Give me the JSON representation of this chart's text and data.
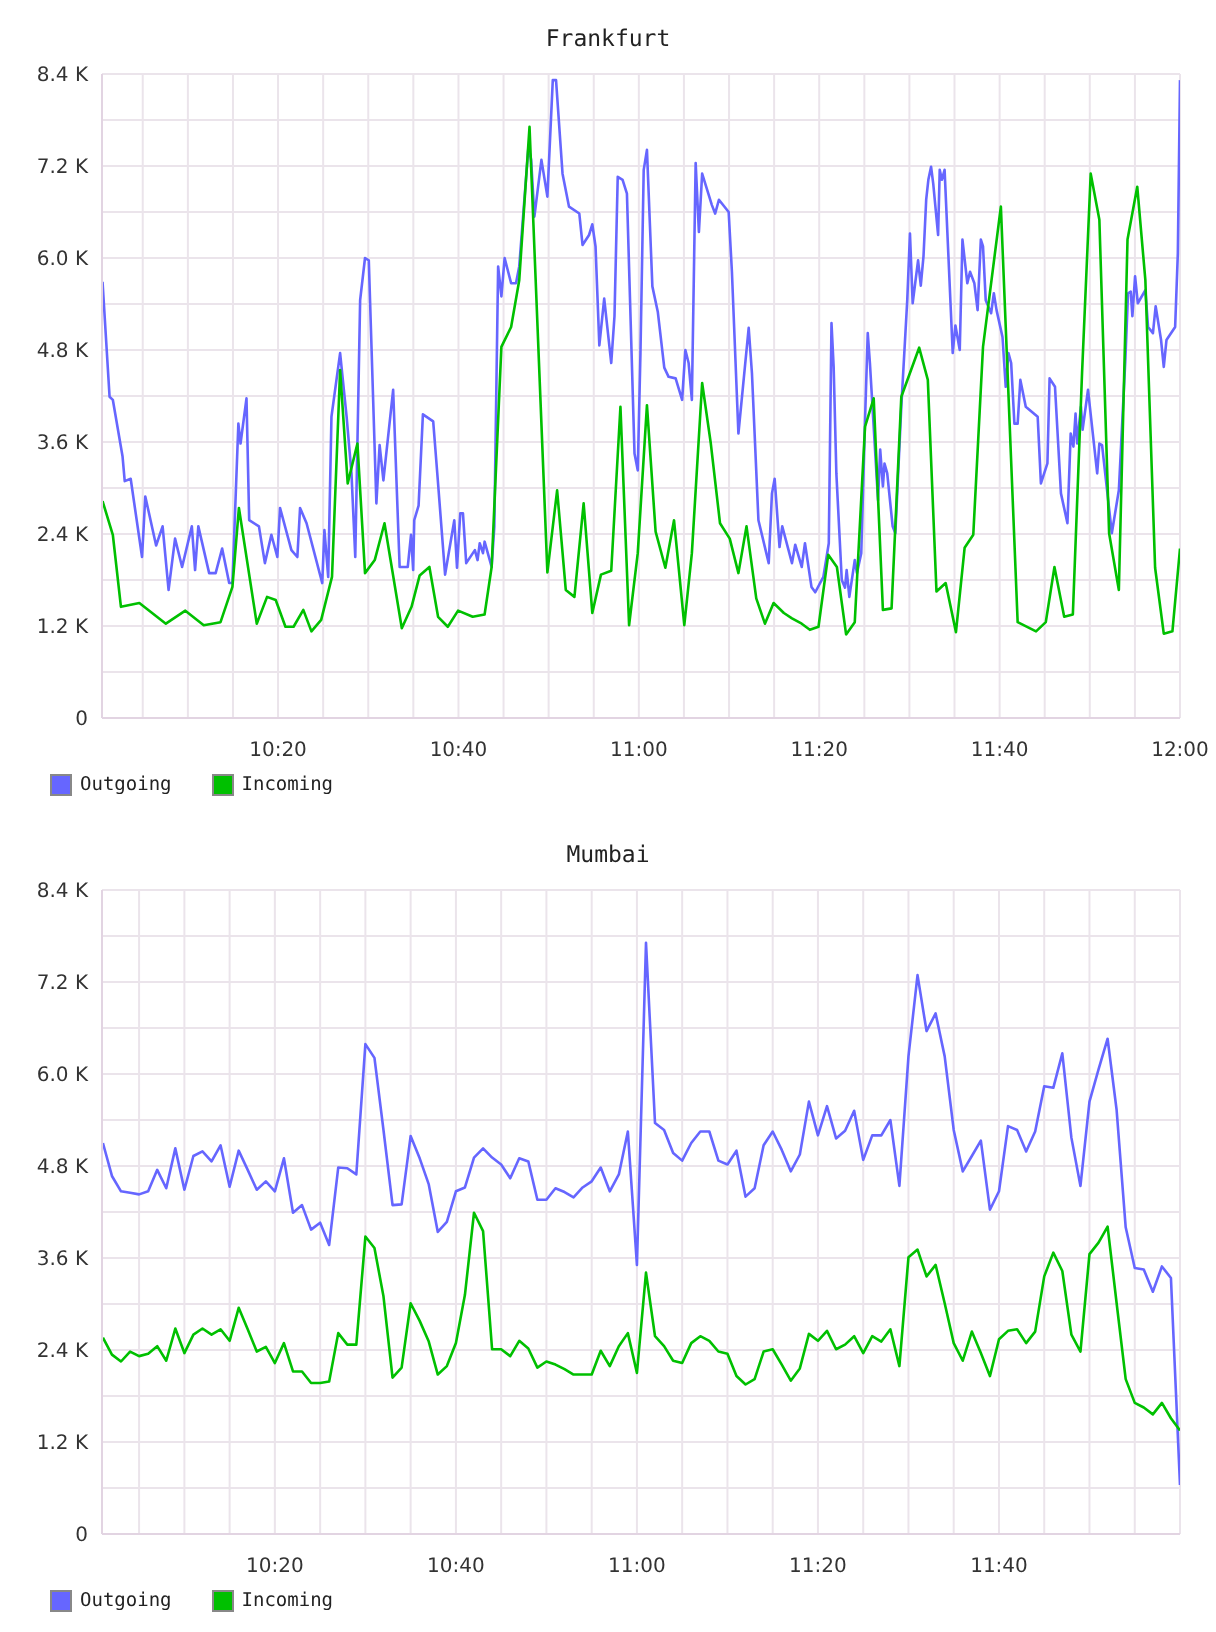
{
  "chart_data": [
    {
      "type": "line",
      "title": "Frankfurt",
      "series": [
        {
          "name": "Outgoing",
          "color": "#6666ff",
          "x": [
            10.009,
            10.022,
            10.028,
            10.046,
            10.05,
            10.061,
            10.082,
            10.088,
            10.108,
            10.12,
            10.131,
            10.143,
            10.156,
            10.174,
            10.18,
            10.186,
            10.206,
            10.218,
            10.23,
            10.243,
            10.249,
            10.26,
            10.264,
            10.275,
            10.28,
            10.298,
            10.309,
            10.321,
            10.332,
            10.337,
            10.358,
            10.369,
            10.374,
            10.386,
            10.415,
            10.419,
            10.426,
            10.432,
            10.448,
            10.46,
            10.469,
            10.476,
            10.485,
            10.494,
            10.501,
            10.515,
            10.521,
            10.528,
            10.546,
            10.558,
            10.573,
            10.579,
            10.583,
            10.585,
            10.593,
            10.601,
            10.62,
            10.628,
            10.642,
            10.647,
            10.659,
            10.664,
            10.67,
            10.675,
            10.681,
            10.697,
            10.702,
            10.706,
            10.712,
            10.715,
            10.728,
            10.733,
            10.74,
            10.746,
            10.752,
            10.764,
            10.773,
            10.779,
            10.796,
            10.801,
            10.807,
            10.82,
            10.831,
            10.841,
            10.847,
            10.859,
            10.871,
            10.89,
            10.896,
            10.908,
            10.914,
            10.92,
            10.927,
            10.936,
            10.949,
            10.955,
            10.961,
            10.97,
            10.978,
            10.992,
            10.998,
            11.003,
            11.009,
            11.015,
            11.025,
            11.035,
            11.047,
            11.055,
            11.068,
            11.08,
            11.086,
            11.092,
            11.098,
            11.105,
            11.111,
            11.117,
            11.135,
            11.141,
            11.148,
            11.166,
            11.172,
            11.184,
            11.203,
            11.209,
            11.221,
            11.24,
            11.246,
            11.251,
            11.26,
            11.265,
            11.283,
            11.289,
            11.301,
            11.307,
            11.319,
            11.326,
            11.341,
            11.351,
            11.356,
            11.36,
            11.365,
            11.375,
            11.381,
            11.384,
            11.389,
            11.399,
            11.403,
            11.411,
            11.418,
            11.423,
            11.427,
            11.442,
            11.446,
            11.451,
            11.454,
            11.459,
            11.469,
            11.474,
            11.485,
            11.496,
            11.501,
            11.506,
            11.516,
            11.521,
            11.526,
            11.531,
            11.535,
            11.54,
            11.544,
            11.553,
            11.556,
            11.56,
            11.565,
            11.58,
            11.585,
            11.593,
            11.598,
            11.607,
            11.612,
            11.62,
            11.626,
            11.632,
            11.636,
            11.641,
            11.651,
            11.656,
            11.661,
            11.672,
            11.678,
            11.683,
            11.688,
            11.694,
            11.7,
            11.705,
            11.715,
            11.737,
            11.743,
            11.755,
            11.759,
            11.769,
            11.78,
            11.792,
            11.798,
            11.803,
            11.807,
            11.81,
            11.817,
            11.82,
            11.83,
            11.847,
            11.851,
            11.856,
            11.874,
            11.887,
            11.899,
            11.904,
            11.909,
            11.912,
            11.917,
            11.922,
            11.936,
            11.941,
            11.95,
            11.955,
            11.965,
            11.97,
            11.975,
            11.991,
            11.996,
            12
          ],
          "values": [
            5690,
            4190,
            4150,
            3410,
            3090,
            3120,
            2100,
            2890,
            2250,
            2500,
            1670,
            2340,
            1970,
            2500,
            1930,
            2500,
            1890,
            1890,
            2210,
            1760,
            1760,
            3840,
            3580,
            4170,
            2580,
            2500,
            2020,
            2390,
            2100,
            2740,
            2190,
            2100,
            2740,
            2540,
            1760,
            2450,
            1840,
            3930,
            4760,
            3930,
            3190,
            2100,
            5450,
            6000,
            5970,
            2800,
            3560,
            3100,
            4280,
            1970,
            1970,
            2390,
            1930,
            2580,
            2770,
            3960,
            3870,
            3150,
            1870,
            2080,
            2580,
            1960,
            2670,
            2670,
            2020,
            2190,
            2060,
            2280,
            2150,
            2300,
            1970,
            2500,
            5890,
            5500,
            6000,
            5670,
            5670,
            5890,
            7450,
            7280,
            6540,
            7280,
            6800,
            8320,
            8320,
            7100,
            6670,
            6580,
            6170,
            6300,
            6440,
            6150,
            4860,
            5470,
            4630,
            5240,
            7060,
            7020,
            6840,
            3450,
            3230,
            4760,
            7150,
            7410,
            5630,
            5300,
            4570,
            4450,
            4430,
            4150,
            4800,
            4630,
            4150,
            7240,
            6340,
            7100,
            6690,
            6580,
            6760,
            6600,
            5820,
            3710,
            5090,
            4500,
            2580,
            2020,
            2930,
            3120,
            2230,
            2500,
            2020,
            2260,
            1970,
            2280,
            1710,
            1640,
            1840,
            2280,
            5150,
            4580,
            3190,
            1800,
            1700,
            1930,
            1580,
            2060,
            1890,
            2150,
            3890,
            5020,
            4630,
            2840,
            3500,
            3020,
            3320,
            3190,
            2500,
            2410,
            4060,
            5450,
            6320,
            5410,
            5970,
            5640,
            6020,
            6760,
            7020,
            7190,
            6970,
            6300,
            7150,
            7020,
            7150,
            4760,
            5120,
            4800,
            6240,
            5670,
            5820,
            5670,
            5320,
            6240,
            6150,
            5450,
            5280,
            5540,
            5320,
            4970,
            4320,
            4760,
            4630,
            3840,
            3840,
            4410,
            4060,
            3930,
            3060,
            3320,
            4430,
            4320,
            2930,
            2540,
            3710,
            3540,
            3970,
            3580,
            4060,
            3760,
            4280,
            3190,
            3580,
            3560,
            2410,
            2970,
            4670,
            5540,
            5560,
            5240,
            5760,
            5410,
            5580,
            5100,
            5020,
            5370,
            4930,
            4580,
            4930,
            5100,
            6060,
            8320
          ]
        },
        {
          "name": "Incoming",
          "color": "#00c000",
          "x": [
            10.009,
            10.028,
            10.043,
            10.077,
            10.126,
            10.162,
            10.196,
            10.227,
            10.249,
            10.261,
            10.294,
            10.313,
            10.329,
            10.347,
            10.362,
            10.38,
            10.395,
            10.413,
            10.433,
            10.448,
            10.462,
            10.48,
            10.494,
            10.512,
            10.53,
            10.562,
            10.58,
            10.595,
            10.613,
            10.629,
            10.647,
            10.666,
            10.693,
            10.715,
            10.728,
            10.746,
            10.764,
            10.779,
            10.798,
            10.831,
            10.849,
            10.865,
            10.881,
            10.898,
            10.914,
            10.93,
            10.949,
            10.966,
            10.982,
            10.998,
            11.015,
            11.031,
            11.049,
            11.065,
            11.084,
            11.098,
            11.117,
            11.133,
            11.15,
            11.168,
            11.184,
            11.199,
            11.217,
            11.233,
            11.249,
            11.268,
            11.283,
            11.301,
            11.316,
            11.332,
            11.35,
            11.366,
            11.383,
            11.399,
            11.418,
            11.434,
            11.451,
            11.467,
            11.485,
            11.518,
            11.534,
            11.55,
            11.567,
            11.586,
            11.602,
            11.618,
            11.636,
            11.669,
            11.7,
            11.734,
            11.752,
            11.768,
            11.786,
            11.802,
            11.819,
            11.835,
            11.851,
            11.869,
            11.887,
            11.903,
            11.921,
            11.936,
            11.954,
            11.97,
            11.986,
            12
          ],
          "values": [
            2830,
            2390,
            1450,
            1500,
            1230,
            1400,
            1210,
            1250,
            1710,
            2740,
            1230,
            1580,
            1540,
            1190,
            1190,
            1410,
            1130,
            1280,
            1840,
            4540,
            3060,
            3580,
            1890,
            2060,
            2540,
            1170,
            1450,
            1860,
            1970,
            1320,
            1190,
            1400,
            1320,
            1350,
            1970,
            4840,
            5100,
            5710,
            7710,
            1900,
            2970,
            1670,
            1580,
            2800,
            1370,
            1870,
            1920,
            4060,
            1210,
            2150,
            4080,
            2430,
            1960,
            2580,
            1210,
            2150,
            4370,
            3580,
            2540,
            2340,
            1890,
            2500,
            1560,
            1230,
            1500,
            1370,
            1300,
            1230,
            1150,
            1190,
            2130,
            1970,
            1090,
            1250,
            3800,
            4170,
            1410,
            1430,
            4190,
            4830,
            4410,
            1650,
            1760,
            1120,
            2220,
            2390,
            4840,
            6670,
            1250,
            1130,
            1250,
            1970,
            1320,
            1350,
            4500,
            7100,
            6500,
            2410,
            1670,
            6240,
            6930,
            5710,
            1960,
            1100,
            1130,
            2210
          ]
        }
      ],
      "xlim": [
        10.008,
        12
      ],
      "xticks": [
        {
          "value": 10.0833,
          "label": null
        },
        {
          "value": 10.1667,
          "label": null
        },
        {
          "value": 10.25,
          "label": null
        },
        {
          "value": 10.3333,
          "label": "10:20"
        },
        {
          "value": 10.4167,
          "label": null
        },
        {
          "value": 10.5,
          "label": null
        },
        {
          "value": 10.5833,
          "label": null
        },
        {
          "value": 10.6667,
          "label": "10:40"
        },
        {
          "value": 10.75,
          "label": null
        },
        {
          "value": 10.8333,
          "label": null
        },
        {
          "value": 10.9167,
          "label": null
        },
        {
          "value": 11,
          "label": "11:00"
        },
        {
          "value": 11.0833,
          "label": null
        },
        {
          "value": 11.1667,
          "label": null
        },
        {
          "value": 11.25,
          "label": null
        },
        {
          "value": 11.3333,
          "label": "11:20"
        },
        {
          "value": 11.4167,
          "label": null
        },
        {
          "value": 11.5,
          "label": null
        },
        {
          "value": 11.5833,
          "label": null
        },
        {
          "value": 11.6667,
          "label": "11:40"
        },
        {
          "value": 11.75,
          "label": null
        },
        {
          "value": 11.8333,
          "label": null
        },
        {
          "value": 11.9167,
          "label": null
        },
        {
          "value": 12,
          "label": "12:00"
        }
      ],
      "ylim": [
        0,
        8400
      ],
      "yticks": [
        0,
        {
          "value": 600,
          "label": null
        },
        {
          "value": 1200,
          "label": "1.2 K"
        },
        {
          "value": 1800,
          "label": null
        },
        {
          "value": 2400,
          "label": "2.4 K"
        },
        {
          "value": 3000,
          "label": null
        },
        {
          "value": 3600,
          "label": "3.6 K"
        },
        {
          "value": 4200,
          "label": null
        },
        {
          "value": 4800,
          "label": "4.8 K"
        },
        {
          "value": 5400,
          "label": null
        },
        {
          "value": 6000,
          "label": "6.0 K"
        },
        {
          "value": 6600,
          "label": null
        },
        {
          "value": 7200,
          "label": "7.2 K"
        },
        {
          "value": 7800,
          "label": null
        },
        {
          "value": 8400,
          "label": "8.4 K"
        }
      ],
      "grid": true,
      "legend": "bottom left",
      "marker": "none"
    },
    {
      "type": "line",
      "title": "Mumbai",
      "x": [
        10.0167,
        10.0333,
        10.05,
        10.0667,
        10.0833,
        10.1,
        10.1167,
        10.1333,
        10.15,
        10.1667,
        10.1833,
        10.2,
        10.2167,
        10.2333,
        10.25,
        10.2667,
        10.2833,
        10.3,
        10.3167,
        10.3333,
        10.35,
        10.3667,
        10.3833,
        10.4,
        10.4167,
        10.4333,
        10.45,
        10.4667,
        10.4833,
        10.5,
        10.5167,
        10.5333,
        10.55,
        10.5667,
        10.5833,
        10.6,
        10.6167,
        10.6333,
        10.65,
        10.6667,
        10.6833,
        10.7,
        10.7167,
        10.7333,
        10.75,
        10.7667,
        10.7833,
        10.8,
        10.8167,
        10.8333,
        10.85,
        10.8667,
        10.8833,
        10.9,
        10.9167,
        10.9333,
        10.95,
        10.9667,
        10.9833,
        11,
        11.0167,
        11.0333,
        11.05,
        11.0667,
        11.0833,
        11.1,
        11.1167,
        11.1333,
        11.15,
        11.1667,
        11.1833,
        11.2,
        11.2167,
        11.2333,
        11.25,
        11.2667,
        11.2833,
        11.3,
        11.3167,
        11.3333,
        11.35,
        11.3667,
        11.3833,
        11.4,
        11.4167,
        11.4333,
        11.45,
        11.4667,
        11.4833,
        11.5,
        11.5167,
        11.5333,
        11.55,
        11.5667,
        11.5833,
        11.6,
        11.6167,
        11.6333,
        11.65,
        11.6667,
        11.6833,
        11.7,
        11.7167,
        11.7333,
        11.75,
        11.7667,
        11.7833,
        11.8,
        11.8167,
        11.8333,
        11.85,
        11.8667,
        11.8833,
        11.9,
        11.9167,
        11.9333,
        11.95,
        11.9667,
        11.9833,
        12
      ],
      "series": [
        {
          "name": "Outgoing",
          "color": "#6666ff",
          "values": [
            5100,
            4670,
            4470,
            4450,
            4430,
            4470,
            4750,
            4510,
            5030,
            4490,
            4930,
            4990,
            4860,
            5070,
            4530,
            5000,
            4750,
            4490,
            4600,
            4470,
            4900,
            4190,
            4290,
            3970,
            4060,
            3770,
            4780,
            4770,
            4690,
            6390,
            6210,
            5270,
            4290,
            4300,
            5190,
            4900,
            4560,
            3940,
            4070,
            4470,
            4520,
            4910,
            5030,
            4910,
            4820,
            4640,
            4900,
            4860,
            4360,
            4360,
            4510,
            4460,
            4390,
            4520,
            4600,
            4780,
            4470,
            4690,
            5250,
            3510,
            7710,
            5360,
            5270,
            4970,
            4870,
            5100,
            5250,
            5250,
            4870,
            4820,
            5000,
            4400,
            4510,
            5070,
            5250,
            5010,
            4730,
            4950,
            5640,
            5200,
            5580,
            5160,
            5260,
            5520,
            4880,
            5200,
            5200,
            5400,
            4540,
            6230,
            7290,
            6560,
            6790,
            6230,
            5270,
            4730,
            4930,
            5130,
            4230,
            4470,
            5320,
            5270,
            4990,
            5250,
            5840,
            5820,
            6270,
            5170,
            4540,
            5640,
            6060,
            6460,
            5530,
            4000,
            3470,
            3450,
            3160,
            3490,
            3340,
            640
          ]
        },
        {
          "name": "Incoming",
          "color": "#00c000",
          "values": [
            2560,
            2340,
            2250,
            2380,
            2320,
            2350,
            2450,
            2260,
            2680,
            2360,
            2600,
            2680,
            2600,
            2670,
            2520,
            2950,
            2670,
            2380,
            2440,
            2230,
            2490,
            2120,
            2120,
            1970,
            1970,
            1990,
            2620,
            2470,
            2470,
            3880,
            3730,
            3100,
            2040,
            2170,
            3010,
            2780,
            2510,
            2080,
            2190,
            2490,
            3120,
            4190,
            3950,
            2410,
            2410,
            2320,
            2520,
            2420,
            2170,
            2250,
            2210,
            2150,
            2080,
            2080,
            2080,
            2390,
            2190,
            2450,
            2620,
            2100,
            3410,
            2580,
            2450,
            2260,
            2230,
            2490,
            2580,
            2520,
            2380,
            2350,
            2060,
            1950,
            2020,
            2380,
            2410,
            2210,
            2000,
            2160,
            2610,
            2520,
            2650,
            2410,
            2470,
            2580,
            2360,
            2580,
            2510,
            2670,
            2190,
            3610,
            3710,
            3360,
            3510,
            3010,
            2490,
            2260,
            2640,
            2360,
            2060,
            2540,
            2650,
            2670,
            2490,
            2640,
            3360,
            3670,
            3430,
            2600,
            2380,
            3650,
            3800,
            4010,
            3010,
            2020,
            1710,
            1650,
            1560,
            1710,
            1510,
            1350
          ]
        }
      ],
      "xlim": [
        10.015,
        12
      ],
      "xticks": [
        {
          "value": 10.0833,
          "label": null
        },
        {
          "value": 10.1667,
          "label": null
        },
        {
          "value": 10.25,
          "label": null
        },
        {
          "value": 10.3333,
          "label": "10:20"
        },
        {
          "value": 10.4167,
          "label": null
        },
        {
          "value": 10.5,
          "label": null
        },
        {
          "value": 10.5833,
          "label": null
        },
        {
          "value": 10.6667,
          "label": "10:40"
        },
        {
          "value": 10.75,
          "label": null
        },
        {
          "value": 10.8333,
          "label": null
        },
        {
          "value": 10.9167,
          "label": null
        },
        {
          "value": 11,
          "label": "11:00"
        },
        {
          "value": 11.0833,
          "label": null
        },
        {
          "value": 11.1667,
          "label": null
        },
        {
          "value": 11.25,
          "label": null
        },
        {
          "value": 11.3333,
          "label": "11:20"
        },
        {
          "value": 11.4167,
          "label": null
        },
        {
          "value": 11.5,
          "label": null
        },
        {
          "value": 11.5833,
          "label": null
        },
        {
          "value": 11.6667,
          "label": "11:40"
        },
        {
          "value": 11.75,
          "label": null
        },
        {
          "value": 11.8333,
          "label": null
        },
        {
          "value": 11.9167,
          "label": null
        }
      ],
      "ylim": [
        0,
        8400
      ],
      "yticks": [
        0,
        {
          "value": 600,
          "label": null
        },
        {
          "value": 1200,
          "label": "1.2 K"
        },
        {
          "value": 1800,
          "label": null
        },
        {
          "value": 2400,
          "label": "2.4 K"
        },
        {
          "value": 3000,
          "label": null
        },
        {
          "value": 3600,
          "label": "3.6 K"
        },
        {
          "value": 4200,
          "label": null
        },
        {
          "value": 4800,
          "label": "4.8 K"
        },
        {
          "value": 5400,
          "label": null
        },
        {
          "value": 6000,
          "label": "6.0 K"
        },
        {
          "value": 6600,
          "label": null
        },
        {
          "value": 7200,
          "label": "7.2 K"
        },
        {
          "value": 7800,
          "label": null
        },
        {
          "value": 8400,
          "label": "8.4 K"
        }
      ],
      "grid": true,
      "legend": "bottom left",
      "marker": "none"
    }
  ]
}
